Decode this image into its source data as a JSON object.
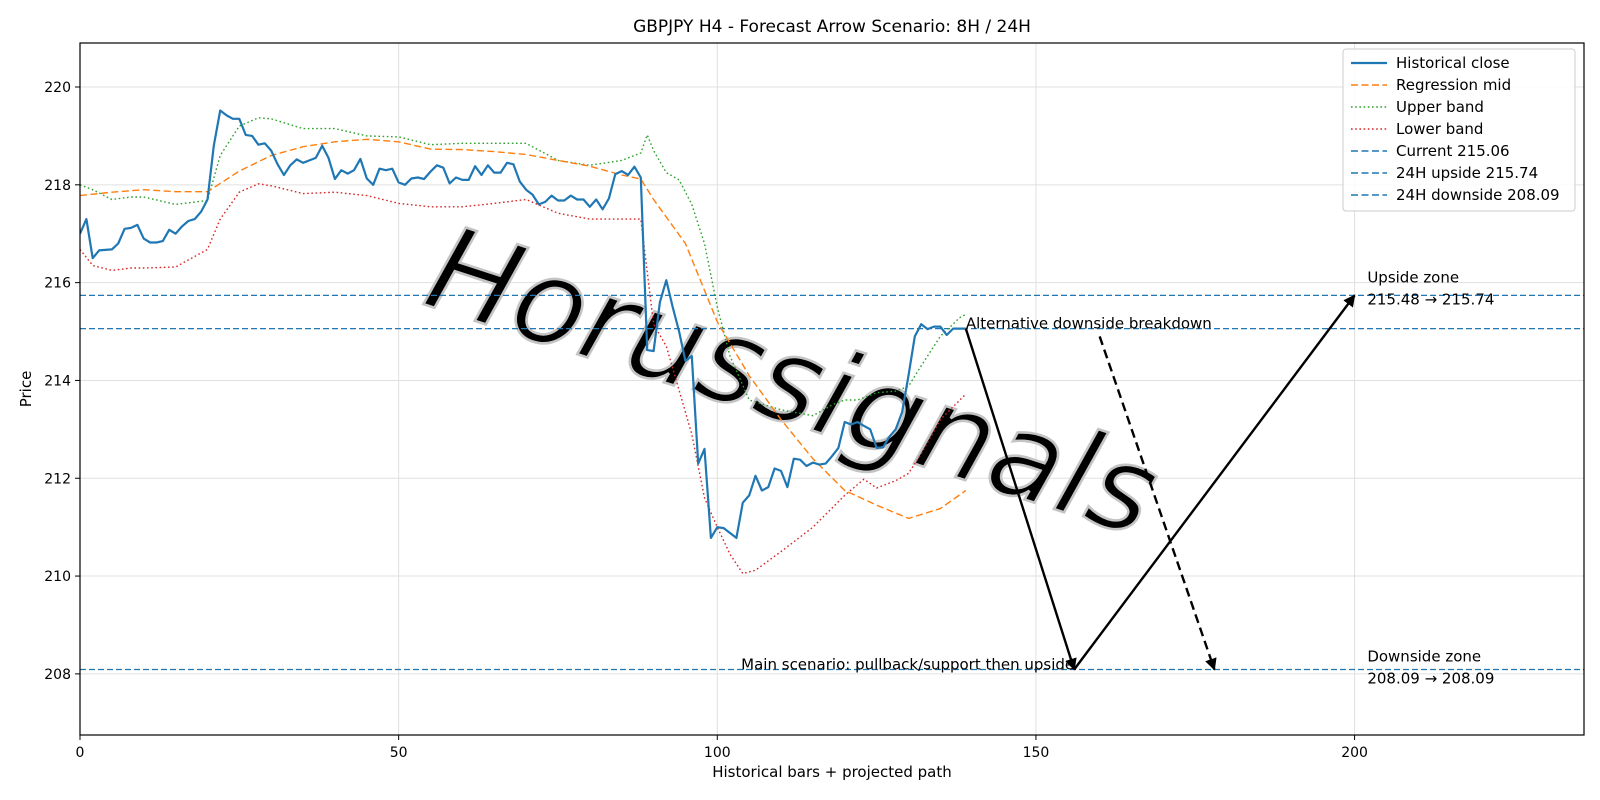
{
  "chart_data": {
    "type": "line",
    "title": "GBPJPY H4 - Forecast Arrow Scenario: 8H / 24H",
    "xlabel": "Historical bars + projected path",
    "ylabel": "Price",
    "xlim": [
      0,
      236
    ],
    "ylim": [
      206.75,
      220.9
    ],
    "xticks": [
      0,
      50,
      100,
      150,
      200
    ],
    "yticks": [
      208,
      210,
      212,
      214,
      216,
      218,
      220
    ],
    "grid": true,
    "legend_position": "top-right",
    "watermark": "Horussignals",
    "colors": {
      "close": "#1f77b4",
      "mid": "#ff7f0e",
      "upper": "#2ca02c",
      "lower": "#d62728",
      "hline": "#1f77b4"
    },
    "series": [
      {
        "name": "Historical close",
        "style": "solid",
        "color": "#1f77b4",
        "x": [
          0,
          1,
          2,
          3,
          4,
          5,
          6,
          7,
          8,
          9,
          10,
          11,
          12,
          13,
          14,
          15,
          16,
          17,
          18,
          19,
          20,
          21,
          22,
          23,
          24,
          25,
          26,
          27,
          28,
          29,
          30,
          31,
          32,
          33,
          34,
          35,
          36,
          37,
          38,
          39,
          40,
          41,
          42,
          43,
          44,
          45,
          46,
          47,
          48,
          49,
          50,
          51,
          52,
          53,
          54,
          55,
          56,
          57,
          58,
          59,
          60,
          61,
          62,
          63,
          64,
          65,
          66,
          67,
          68,
          69,
          70,
          71,
          72,
          73,
          74,
          75,
          76,
          77,
          78,
          79,
          80,
          81,
          82,
          83,
          84,
          85,
          86,
          87,
          88,
          89,
          90,
          91,
          92,
          93,
          94,
          95,
          96,
          97,
          98,
          99,
          100,
          101,
          102,
          103,
          104,
          105,
          106,
          107,
          108,
          109,
          110,
          111,
          112,
          113,
          114,
          115,
          116,
          117,
          118,
          119,
          120,
          121,
          122,
          123,
          124,
          125,
          126,
          127,
          128,
          129,
          130,
          131,
          132,
          133,
          134,
          135,
          136,
          137,
          138,
          139
        ],
        "y": [
          217.0,
          217.3,
          216.5,
          216.66,
          216.67,
          216.68,
          216.8,
          217.1,
          217.12,
          217.18,
          216.9,
          216.82,
          216.82,
          216.85,
          217.08,
          217.0,
          217.15,
          217.26,
          217.3,
          217.45,
          217.7,
          218.8,
          219.52,
          219.42,
          219.35,
          219.35,
          219.02,
          219.0,
          218.82,
          218.85,
          218.7,
          218.42,
          218.2,
          218.4,
          218.52,
          218.45,
          218.5,
          218.55,
          218.8,
          218.55,
          218.12,
          218.3,
          218.23,
          218.3,
          218.53,
          218.13,
          218.0,
          218.33,
          218.3,
          218.33,
          218.05,
          218.0,
          218.13,
          218.15,
          218.12,
          218.27,
          218.4,
          218.35,
          218.03,
          218.15,
          218.1,
          218.1,
          218.38,
          218.2,
          218.4,
          218.25,
          218.25,
          218.45,
          218.42,
          218.07,
          217.9,
          217.8,
          217.6,
          217.65,
          217.78,
          217.68,
          217.68,
          217.78,
          217.7,
          217.7,
          217.55,
          217.7,
          217.5,
          217.72,
          218.22,
          218.28,
          218.2,
          218.37,
          218.15,
          214.62,
          214.6,
          215.6,
          216.05,
          215.5,
          215.0,
          214.4,
          214.5,
          212.3,
          212.6,
          210.78,
          211.0,
          210.98,
          210.88,
          210.78,
          211.5,
          211.65,
          212.05,
          211.75,
          211.82,
          212.2,
          212.15,
          211.82,
          212.4,
          212.38,
          212.25,
          212.32,
          212.28,
          212.3,
          212.45,
          212.62,
          213.15,
          213.1,
          213.15,
          213.07,
          213.0,
          212.62,
          212.63,
          212.85,
          213.0,
          213.35,
          214.1,
          214.9,
          215.15,
          215.05,
          215.1,
          215.1,
          214.93,
          215.06,
          215.06,
          215.06
        ]
      },
      {
        "name": "Regression mid",
        "style": "dashed",
        "color": "#ff7f0e",
        "x": [
          0,
          5,
          10,
          15,
          20,
          25,
          30,
          35,
          40,
          45,
          50,
          55,
          60,
          65,
          70,
          75,
          80,
          85,
          88,
          90,
          95,
          100,
          105,
          110,
          115,
          120,
          125,
          130,
          135,
          139
        ],
        "y": [
          217.78,
          217.85,
          217.9,
          217.86,
          217.86,
          218.28,
          218.6,
          218.78,
          218.88,
          218.93,
          218.88,
          218.73,
          218.72,
          218.68,
          218.62,
          218.5,
          218.38,
          218.2,
          218.12,
          217.7,
          216.8,
          215.2,
          214.1,
          213.2,
          212.4,
          211.75,
          211.45,
          211.18,
          211.38,
          211.75
        ]
      },
      {
        "name": "Upper band",
        "style": "dotted",
        "color": "#2ca02c",
        "x": [
          0,
          2,
          5,
          8,
          10,
          15,
          20,
          22,
          25,
          28,
          30,
          35,
          40,
          45,
          50,
          55,
          60,
          65,
          70,
          75,
          80,
          85,
          88,
          89,
          90,
          92,
          94,
          96,
          98,
          100,
          102,
          105,
          110,
          115,
          118,
          120,
          122,
          125,
          128,
          130,
          132,
          135,
          138,
          139
        ],
        "y": [
          218.0,
          217.9,
          217.7,
          217.75,
          217.75,
          217.6,
          217.68,
          218.6,
          219.2,
          219.37,
          219.35,
          219.15,
          219.15,
          219.0,
          218.98,
          218.82,
          218.85,
          218.85,
          218.85,
          218.5,
          218.4,
          218.5,
          218.65,
          219.02,
          218.7,
          218.25,
          218.1,
          217.6,
          216.8,
          215.5,
          214.5,
          213.6,
          213.4,
          213.28,
          213.5,
          213.6,
          213.6,
          213.75,
          213.78,
          213.88,
          214.3,
          214.9,
          215.28,
          215.35
        ]
      },
      {
        "name": "Lower band",
        "style": "dotted",
        "color": "#d62728",
        "x": [
          0,
          2,
          5,
          8,
          10,
          15,
          20,
          22,
          25,
          28,
          30,
          35,
          40,
          45,
          50,
          55,
          60,
          65,
          70,
          75,
          80,
          85,
          88,
          90,
          92,
          94,
          96,
          98,
          100,
          102,
          104,
          106,
          110,
          115,
          120,
          123,
          125,
          128,
          130,
          132,
          135,
          139
        ],
        "y": [
          216.68,
          216.35,
          216.25,
          216.3,
          216.3,
          216.32,
          216.68,
          217.3,
          217.85,
          218.02,
          217.98,
          217.82,
          217.85,
          217.78,
          217.62,
          217.55,
          217.55,
          217.62,
          217.7,
          217.42,
          217.3,
          217.3,
          217.3,
          215.15,
          214.7,
          213.8,
          212.9,
          211.6,
          211.0,
          210.45,
          210.05,
          210.12,
          210.5,
          211.0,
          211.65,
          211.98,
          211.8,
          211.95,
          212.1,
          212.5,
          213.2,
          213.72
        ]
      }
    ],
    "hlines": [
      {
        "name": "Current 215.06",
        "value": 215.06
      },
      {
        "name": "24H upside 215.74",
        "value": 215.74
      },
      {
        "name": "24H downside 208.09",
        "value": 208.09
      }
    ],
    "arrows": [
      {
        "from": [
          139,
          215.06
        ],
        "to": [
          156,
          208.09
        ],
        "style": "solid"
      },
      {
        "from": [
          156,
          208.09
        ],
        "to": [
          200,
          215.74
        ],
        "style": "solid"
      },
      {
        "from": [
          160,
          214.9
        ],
        "to": [
          178,
          208.09
        ],
        "style": "dashed"
      }
    ],
    "annotations": [
      {
        "text": "Alternative downside breakdown",
        "x": 139,
        "y": 215.06,
        "anchor": "start"
      },
      {
        "text": "Main scenario: pullback/support then upside",
        "x": 156,
        "y": 208.09,
        "anchor": "end"
      },
      {
        "text": "Upside zone",
        "x": 202,
        "y": 216.0,
        "anchor": "start"
      },
      {
        "text": "215.48 → 215.74",
        "x": 202,
        "y": 215.55,
        "anchor": "start"
      },
      {
        "text": "Downside zone",
        "x": 202,
        "y": 208.25,
        "anchor": "start"
      },
      {
        "text": "208.09 → 208.09",
        "x": 202,
        "y": 207.8,
        "anchor": "start"
      }
    ]
  }
}
